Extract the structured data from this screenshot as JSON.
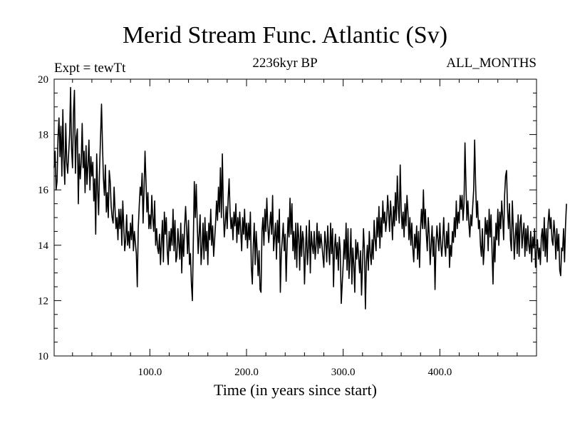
{
  "chart_data": {
    "type": "line",
    "title": "Merid Stream Func. Atlantic (Sv)",
    "subtitle_left": "Expt = tewTt",
    "subtitle_center": "2236kyr BP",
    "subtitle_right": "ALL_MONTHS",
    "xlabel": "Time (in years since start)",
    "ylabel": "",
    "xlim": [
      1,
      500
    ],
    "ylim": [
      10,
      20
    ],
    "xticks": [
      100,
      200,
      300,
      400
    ],
    "xtick_labels": [
      "100.0",
      "200.0",
      "300.0",
      "400.0"
    ],
    "yticks": [
      10,
      12,
      14,
      16,
      18,
      20
    ],
    "ytick_labels": [
      "10",
      "12",
      "14",
      "16",
      "18",
      "20"
    ],
    "series": [
      {
        "name": "Merid Stream Func. Atlantic",
        "x_start": 1,
        "x_step": 1,
        "values": [
          16.8,
          17.4,
          16.0,
          16.3,
          17.9,
          18.6,
          17.2,
          18.3,
          16.5,
          18.9,
          17.1,
          16.2,
          18.4,
          17.0,
          16.6,
          17.3,
          18.0,
          19.7,
          17.5,
          16.8,
          18.8,
          19.6,
          16.6,
          17.9,
          18.2,
          15.5,
          17.3,
          16.4,
          17.0,
          18.4,
          16.8,
          17.4,
          15.9,
          17.6,
          16.2,
          16.9,
          17.8,
          16.0,
          17.2,
          16.5,
          17.0,
          15.6,
          16.4,
          14.4,
          17.3,
          16.0,
          15.1,
          16.8,
          17.9,
          19.1,
          17.6,
          16.4,
          15.8,
          16.9,
          15.2,
          15.9,
          15.0,
          16.7,
          16.3,
          15.4,
          15.0,
          14.8,
          16.1,
          15.3,
          14.6,
          15.0,
          14.2,
          15.3,
          14.6,
          15.3,
          14.0,
          15.6,
          14.7,
          13.8,
          14.2,
          15.1,
          14.0,
          14.5,
          13.9,
          14.8,
          14.2,
          15.1,
          13.8,
          14.5,
          14.1,
          13.7,
          12.5,
          14.6,
          15.4,
          16.1,
          15.8,
          16.6,
          14.8,
          16.0,
          17.4,
          16.3,
          15.2,
          15.9,
          14.6,
          15.1,
          14.6,
          15.8,
          15.0,
          14.5,
          15.6,
          14.0,
          14.6,
          13.9,
          13.7,
          14.4,
          13.3,
          14.1,
          14.9,
          13.4,
          15.2,
          14.4,
          15.0,
          13.8,
          13.3,
          14.5,
          13.8,
          14.6,
          14.0,
          15.3,
          13.8,
          14.9,
          13.4,
          13.6,
          14.6,
          14.1,
          13.5,
          14.8,
          13.0,
          14.4,
          13.6,
          14.7,
          15.4,
          14.6,
          13.7,
          14.9,
          13.3,
          13.7,
          12.6,
          12.0,
          14.2,
          16.3,
          15.0,
          16.2,
          14.8,
          13.7,
          14.4,
          15.1,
          13.3,
          13.9,
          14.8,
          13.5,
          15.0,
          13.8,
          14.5,
          13.3,
          14.8,
          14.2,
          15.3,
          14.0,
          14.7,
          13.6,
          14.2,
          14.8,
          15.6,
          14.9,
          16.1,
          15.2,
          16.8,
          15.0,
          17.3,
          15.4,
          14.3,
          14.8,
          15.4,
          14.6,
          15.7,
          16.4,
          15.2,
          14.6,
          15.0,
          14.2,
          15.2,
          14.7,
          15.5,
          14.1,
          15.0,
          14.4,
          15.2,
          14.5,
          13.8,
          15.0,
          14.4,
          15.3,
          14.2,
          14.8,
          13.9,
          14.8,
          14.2,
          15.2,
          13.2,
          12.6,
          14.0,
          14.8,
          13.3,
          14.5,
          13.8,
          12.9,
          13.8,
          12.4,
          12.3,
          14.5,
          15.0,
          14.0,
          15.3,
          14.5,
          15.7,
          14.7,
          14.1,
          14.7,
          15.2,
          14.4,
          15.8,
          13.8,
          14.3,
          14.8,
          13.5,
          14.9,
          14.1,
          15.3,
          12.3,
          13.7,
          14.2,
          14.8,
          13.8,
          14.4,
          12.7,
          14.0,
          15.0,
          14.3,
          15.7,
          14.4,
          15.5,
          13.8,
          14.5,
          13.5,
          14.8,
          13.2,
          14.8,
          14.3,
          13.1,
          14.7,
          13.6,
          14.5,
          14.2,
          12.6,
          13.8,
          14.7,
          13.3,
          13.9,
          14.9,
          13.0,
          14.5,
          14.0,
          13.7,
          14.5,
          13.5,
          14.0,
          14.8,
          13.7,
          14.5,
          13.9,
          14.4,
          14.0,
          13.6,
          13.2,
          14.5,
          14.1,
          13.4,
          14.7,
          13.9,
          13.3,
          14.8,
          13.7,
          14.6,
          12.5,
          13.9,
          14.4,
          13.5,
          14.1,
          13.1,
          14.3,
          13.8,
          11.9,
          12.6,
          13.3,
          14.2,
          13.5,
          14.8,
          13.1,
          14.6,
          12.8,
          13.5,
          14.6,
          12.6,
          13.9,
          13.3,
          12.3,
          14.2,
          13.5,
          14.1,
          13.6,
          13.0,
          13.8,
          12.2,
          13.3,
          14.6,
          13.8,
          11.7,
          13.4,
          14.0,
          13.1,
          14.5,
          13.7,
          13.3,
          14.2,
          13.5,
          14.9,
          14.2,
          13.8,
          15.0,
          14.3,
          15.4,
          13.9,
          15.0,
          14.3,
          15.6,
          14.8,
          15.2,
          14.5,
          14.9,
          15.8,
          15.2,
          14.5,
          15.6,
          15.0,
          14.2,
          15.4,
          14.7,
          15.9,
          14.9,
          16.5,
          15.4,
          14.8,
          16.9,
          15.3,
          14.6,
          15.2,
          14.3,
          15.5,
          14.7,
          15.8,
          15.2,
          14.2,
          15.0,
          14.0,
          14.8,
          13.9,
          13.4,
          14.4,
          13.9,
          14.7,
          13.5,
          14.5,
          13.2,
          14.6,
          15.3,
          14.6,
          16.0,
          14.6,
          15.3,
          14.4,
          13.8,
          15.0,
          14.4,
          13.3,
          14.0,
          14.7,
          13.6,
          14.3,
          12.4,
          14.0,
          14.7,
          14.2,
          13.8,
          14.8,
          14.0,
          13.6,
          14.2,
          15.0,
          14.0,
          13.6,
          14.5,
          13.9,
          14.8,
          13.2,
          14.0,
          13.6,
          14.5,
          14.1,
          15.0,
          14.3,
          15.6,
          14.6,
          15.2,
          14.8,
          15.8,
          15.3,
          15.8,
          14.9,
          15.5,
          17.7,
          16.2,
          14.9,
          15.6,
          14.8,
          14.3,
          15.1,
          14.7,
          15.4,
          16.0,
          17.8,
          16.2,
          15.0,
          15.6,
          14.6,
          14.9,
          14.0,
          13.6,
          14.6,
          13.3,
          13.9,
          15.0,
          14.4,
          14.9,
          13.8,
          15.3,
          14.3,
          15.1,
          13.8,
          12.6,
          14.3,
          13.4,
          14.8,
          14.2,
          15.3,
          14.0,
          15.2,
          14.6,
          15.6,
          15.0,
          14.2,
          15.8,
          16.5,
          16.7,
          15.3,
          14.6,
          15.5,
          14.2,
          13.8,
          15.6,
          14.6,
          13.5,
          14.3,
          14.8,
          13.7,
          15.1,
          13.6,
          14.8,
          15.1,
          13.9,
          14.4,
          14.8,
          13.6,
          14.6,
          13.8,
          14.7,
          14.0,
          13.7,
          14.5,
          13.4,
          14.3,
          13.9,
          14.6,
          13.2,
          13.8,
          14.2,
          13.5,
          13.9,
          13.3,
          14.3,
          14.6,
          13.8,
          15.0,
          13.6,
          14.6,
          13.4,
          14.8,
          15.3,
          14.6,
          15.0,
          14.2,
          14.0,
          14.9,
          14.4,
          13.5,
          14.6,
          13.8,
          14.4,
          13.1,
          12.9,
          13.9,
          13.8,
          14.6,
          13.4,
          14.7,
          15.5
        ]
      }
    ]
  }
}
